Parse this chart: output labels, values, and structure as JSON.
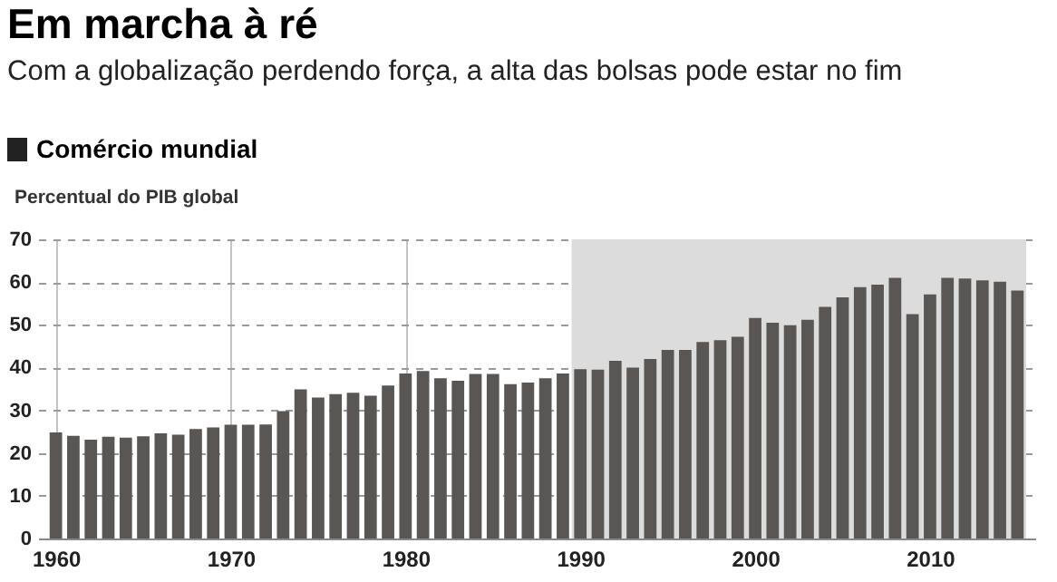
{
  "chart_data": {
    "type": "bar",
    "title": "Em marcha à ré",
    "subtitle": "Com a globalização perdendo força, a alta das bolsas pode estar no fim",
    "annotations": [
      "Comércio mundial"
    ],
    "ylabel": "Percentual do PIB global",
    "x": [
      1960,
      1961,
      1962,
      1963,
      1964,
      1965,
      1966,
      1967,
      1968,
      1969,
      1970,
      1971,
      1972,
      1973,
      1974,
      1975,
      1976,
      1977,
      1978,
      1979,
      1980,
      1981,
      1982,
      1983,
      1984,
      1985,
      1986,
      1987,
      1988,
      1989,
      1990,
      1991,
      1992,
      1993,
      1994,
      1995,
      1996,
      1997,
      1998,
      1999,
      2000,
      2001,
      2002,
      2003,
      2004,
      2005,
      2006,
      2007,
      2008,
      2009,
      2010,
      2011,
      2012,
      2013,
      2014,
      2015
    ],
    "series": [
      {
        "color": "#5a5653",
        "values": [
          24.8,
          24.0,
          23.1,
          23.8,
          23.6,
          23.9,
          24.6,
          24.3,
          25.6,
          26.0,
          26.6,
          26.6,
          26.7,
          29.8,
          34.9,
          33.0,
          33.8,
          34.1,
          33.4,
          35.8,
          38.6,
          39.2,
          37.5,
          36.9,
          38.5,
          38.5,
          36.1,
          36.5,
          37.5,
          38.6,
          39.6,
          39.5,
          41.6,
          40.0,
          42.0,
          44.1,
          44.1,
          46.0,
          46.4,
          47.2,
          51.6,
          50.5,
          49.9,
          51.2,
          54.2,
          56.4,
          58.8,
          59.4,
          61.0,
          52.5,
          57.1,
          61.0,
          60.8,
          60.4,
          60.1,
          58.0
        ]
      }
    ],
    "xlim": [
      1959.5,
      2015.5
    ],
    "xticks": [
      1960,
      1970,
      1980,
      1990,
      2000,
      2010
    ],
    "ylim": [
      0,
      70
    ],
    "yticks": [
      0,
      10,
      20,
      30,
      40,
      50,
      60,
      70
    ],
    "grid": true,
    "bands": [
      {
        "axis": "x",
        "from": 1989.5,
        "to": 2015.5,
        "color": "#dcdcdc"
      }
    ]
  }
}
